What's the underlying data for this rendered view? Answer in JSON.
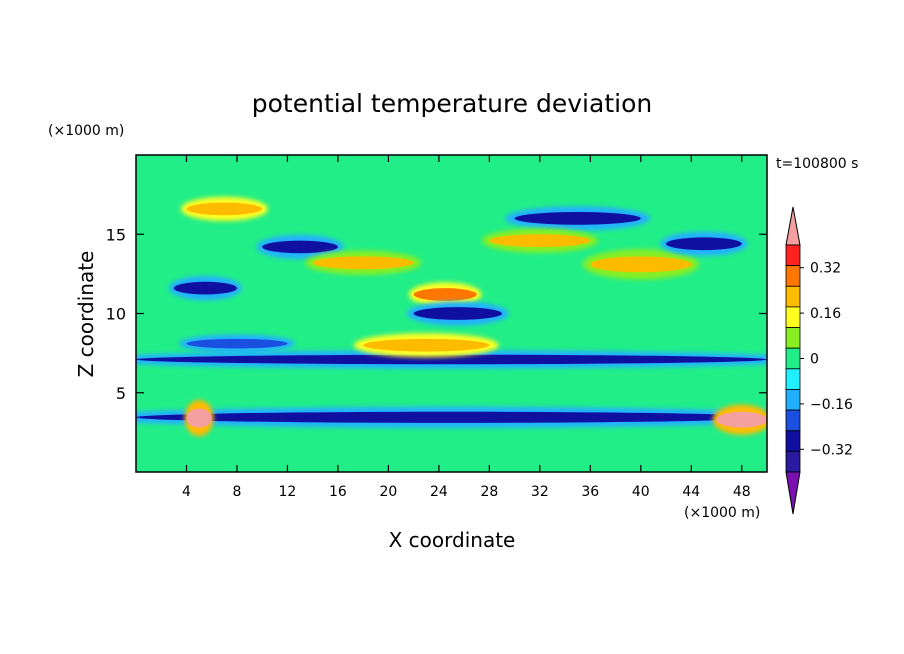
{
  "chart_data": {
    "type": "heatmap",
    "title": "potential temperature deviation",
    "xlabel": "X coordinate",
    "ylabel": "Z coordinate",
    "x_unit": "(×1000 m)",
    "y_unit": "(×1000 m)",
    "time_label": "t=100800 s",
    "xlim": [
      0,
      50
    ],
    "ylim": [
      0,
      20
    ],
    "x_ticks": [
      "4",
      "8",
      "12",
      "16",
      "20",
      "24",
      "28",
      "32",
      "36",
      "40",
      "44",
      "48"
    ],
    "y_ticks": [
      "5",
      "10",
      "15"
    ],
    "colorbar": {
      "levels": [
        -0.44,
        -0.4,
        -0.32,
        -0.24,
        -0.16,
        -0.08,
        0,
        0.08,
        0.16,
        0.24,
        0.32,
        0.4,
        0.44
      ],
      "tick_labels": [
        "0.32",
        "0.16",
        "0",
        "−0.16",
        "−0.32"
      ],
      "tick_values": [
        0.32,
        0.16,
        0,
        -0.16,
        -0.32
      ],
      "colors": [
        "#7b10b0",
        "#2a1aa0",
        "#1010a0",
        "#1a4fe0",
        "#20b0ff",
        "#20f0ff",
        "#22ee88",
        "#88ee22",
        "#ffff22",
        "#ffbb00",
        "#ff7700",
        "#ff2222",
        "#f5a0a0"
      ],
      "extend": "both"
    },
    "features": [
      {
        "x": [
          0,
          50
        ],
        "z": [
          3.1,
          3.8
        ],
        "value": -0.3
      },
      {
        "x": [
          0,
          50
        ],
        "z": [
          6.8,
          7.4
        ],
        "value": -0.28
      },
      {
        "x": [
          4,
          12
        ],
        "z": [
          7.8,
          8.4
        ],
        "value": -0.26
      },
      {
        "x": [
          18,
          28
        ],
        "z": [
          7.6,
          8.4
        ],
        "value": 0.26
      },
      {
        "x": [
          22,
          27
        ],
        "z": [
          10.8,
          11.6
        ],
        "value": 0.36
      },
      {
        "x": [
          22,
          29
        ],
        "z": [
          9.6,
          10.4
        ],
        "value": -0.36
      },
      {
        "x": [
          3,
          8
        ],
        "z": [
          11.2,
          12.0
        ],
        "value": -0.36
      },
      {
        "x": [
          10,
          16
        ],
        "z": [
          13.8,
          14.6
        ],
        "value": -0.36
      },
      {
        "x": [
          30,
          40
        ],
        "z": [
          15.6,
          16.4
        ],
        "value": -0.3
      },
      {
        "x": [
          28,
          36
        ],
        "z": [
          14.2,
          15.0
        ],
        "value": 0.2
      },
      {
        "x": [
          4,
          10
        ],
        "z": [
          16.2,
          17.0
        ],
        "value": 0.22
      },
      {
        "x": [
          14,
          22
        ],
        "z": [
          12.8,
          13.6
        ],
        "value": 0.2
      },
      {
        "x": [
          36,
          44
        ],
        "z": [
          12.6,
          13.6
        ],
        "value": 0.2
      },
      {
        "x": [
          42,
          48
        ],
        "z": [
          14.0,
          14.8
        ],
        "value": -0.3
      },
      {
        "x": [
          4,
          6
        ],
        "z": [
          2.8,
          4.0
        ],
        "value": 0.44
      },
      {
        "x": [
          46,
          50
        ],
        "z": [
          2.8,
          3.8
        ],
        "value": 0.44
      }
    ]
  }
}
